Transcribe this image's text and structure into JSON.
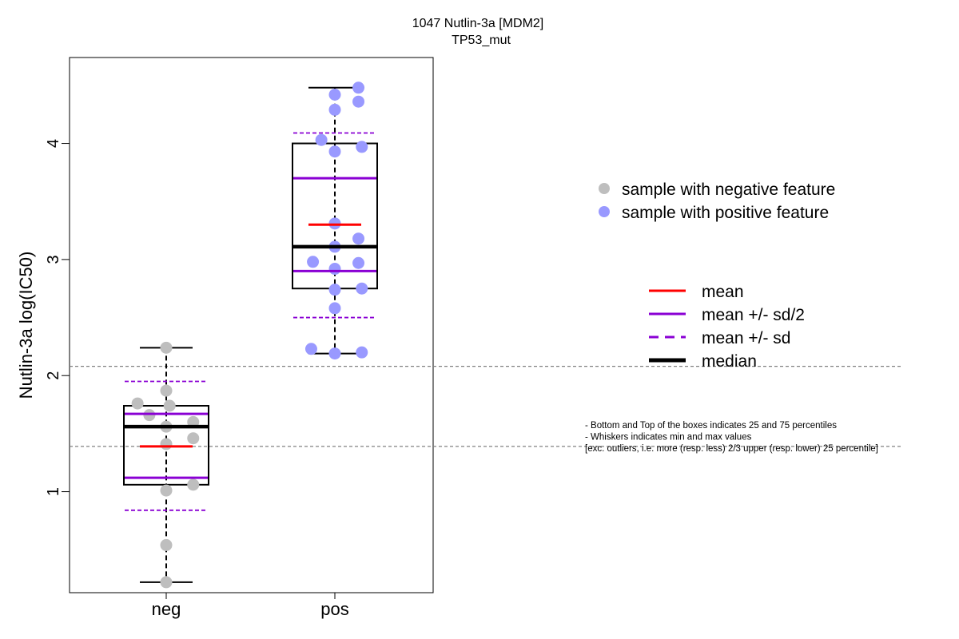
{
  "chart_data": {
    "type": "box",
    "title": "1047 Nutlin-3a [MDM2]",
    "subtitle": "TP53_mut",
    "ylabel": "Nutlin-3a log(IC50)",
    "xlabel": "",
    "categories": [
      "neg",
      "pos"
    ],
    "ylim": [
      0.13,
      4.74
    ],
    "yticks": [
      1,
      2,
      3,
      4
    ],
    "reference_lines": [
      2.08,
      1.39
    ],
    "groups": [
      {
        "name": "neg",
        "color": "#bebebe",
        "min": 0.22,
        "q1": 1.06,
        "median": 1.56,
        "q3": 1.74,
        "max": 2.24,
        "mean": 1.39,
        "mean_minus_half_sd": 1.12,
        "mean_plus_half_sd": 1.67,
        "mean_minus_sd": 0.84,
        "mean_plus_sd": 1.95,
        "points": [
          {
            "x": 0.0,
            "y": 2.24
          },
          {
            "x": 0.0,
            "y": 1.87
          },
          {
            "x": -0.17,
            "y": 1.76
          },
          {
            "x": 0.02,
            "y": 1.74
          },
          {
            "x": -0.1,
            "y": 1.66
          },
          {
            "x": 0.16,
            "y": 1.6
          },
          {
            "x": 0.0,
            "y": 1.56
          },
          {
            "x": 0.16,
            "y": 1.46
          },
          {
            "x": 0.0,
            "y": 1.41
          },
          {
            "x": 0.16,
            "y": 1.06
          },
          {
            "x": 0.0,
            "y": 1.01
          },
          {
            "x": 0.0,
            "y": 0.54
          },
          {
            "x": 0.0,
            "y": 0.22
          }
        ]
      },
      {
        "name": "pos",
        "color": "#9999ff",
        "min": 2.19,
        "q1": 2.75,
        "median": 3.11,
        "q3": 4.0,
        "max": 4.48,
        "mean": 3.3,
        "mean_minus_half_sd": 2.9,
        "mean_plus_half_sd": 3.7,
        "mean_minus_sd": 2.5,
        "mean_plus_sd": 4.09,
        "points": [
          {
            "x": 0.14,
            "y": 4.48
          },
          {
            "x": 0.0,
            "y": 4.42
          },
          {
            "x": 0.14,
            "y": 4.36
          },
          {
            "x": 0.0,
            "y": 4.29
          },
          {
            "x": -0.08,
            "y": 4.03
          },
          {
            "x": 0.16,
            "y": 3.97
          },
          {
            "x": 0.0,
            "y": 3.93
          },
          {
            "x": 0.0,
            "y": 3.31
          },
          {
            "x": 0.14,
            "y": 3.18
          },
          {
            "x": 0.0,
            "y": 3.11
          },
          {
            "x": -0.13,
            "y": 2.98
          },
          {
            "x": 0.14,
            "y": 2.97
          },
          {
            "x": 0.0,
            "y": 2.92
          },
          {
            "x": 0.0,
            "y": 2.74
          },
          {
            "x": 0.16,
            "y": 2.75
          },
          {
            "x": 0.0,
            "y": 2.58
          },
          {
            "x": -0.14,
            "y": 2.23
          },
          {
            "x": 0.16,
            "y": 2.2
          },
          {
            "x": 0.0,
            "y": 2.19
          }
        ]
      }
    ],
    "legend_points": [
      {
        "label": "sample with negative feature",
        "color": "#bebebe"
      },
      {
        "label": "sample with positive feature",
        "color": "#9999ff"
      }
    ],
    "legend_lines": [
      {
        "label": "mean",
        "color": "#ff0000",
        "style": "solid"
      },
      {
        "label": "mean +/- sd/2",
        "color": "#8a00d4",
        "style": "solid"
      },
      {
        "label": "mean +/- sd",
        "color": "#8a00d4",
        "style": "dashed"
      },
      {
        "label": "median",
        "color": "#000000",
        "style": "thick"
      }
    ],
    "notes": [
      "- Bottom and Top of the boxes indicates 25 and 75 percentiles",
      "- Whiskers indicates min and max values",
      "[exc. outliers, i.e. more (resp. less) 2/3 upper (resp. lower) 25 percentile]"
    ],
    "grid": false
  }
}
